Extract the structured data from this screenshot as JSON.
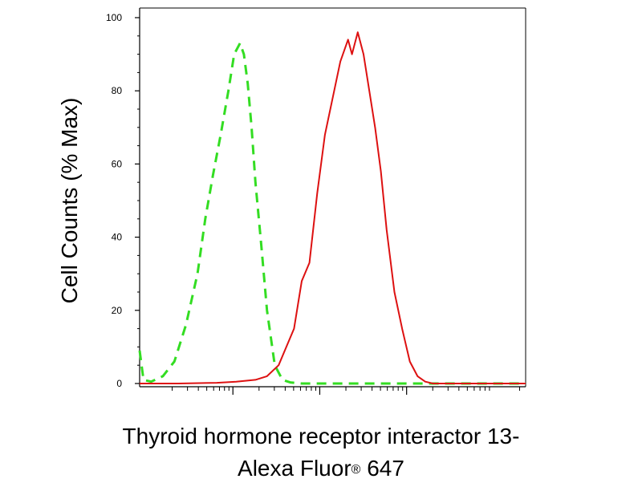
{
  "chart_data": {
    "type": "line",
    "title": "",
    "ylabel": "Cell Counts (% Max)",
    "xlabel_line1": "Thyroid hormone receptor interactor 13-",
    "xlabel_line2_main": "Alexa Fluor",
    "xlabel_line2_mark": "®",
    "xlabel_line2_end": " 647",
    "ylim": [
      0,
      100
    ],
    "yticks": [
      0,
      20,
      40,
      60,
      80,
      100
    ],
    "ytick_labels": [
      "0",
      "20",
      "40",
      "60",
      "80",
      "100"
    ],
    "xlim": [
      0,
      1
    ],
    "x_scale": "log",
    "grid": false,
    "legend": "none",
    "series": [
      {
        "style": "dashed",
        "color": "#33dd22",
        "x": [
          0.0,
          0.01,
          0.03,
          0.06,
          0.09,
          0.12,
          0.15,
          0.17,
          0.19,
          0.21,
          0.23,
          0.245,
          0.26,
          0.27,
          0.28,
          0.29,
          0.3,
          0.315,
          0.33,
          0.35,
          0.37,
          0.39,
          0.42,
          0.45,
          0.5,
          0.6,
          0.7,
          0.8,
          0.9,
          1.0
        ],
        "values": [
          9,
          1,
          0.5,
          2,
          6,
          16,
          30,
          45,
          57,
          68,
          80,
          90,
          93,
          90,
          82,
          70,
          55,
          38,
          20,
          5,
          1,
          0.3,
          0,
          0,
          0,
          0,
          0,
          0,
          0,
          0
        ]
      },
      {
        "style": "solid",
        "color": "#dd1111",
        "x": [
          0.0,
          0.1,
          0.2,
          0.25,
          0.3,
          0.33,
          0.36,
          0.38,
          0.4,
          0.42,
          0.44,
          0.46,
          0.48,
          0.5,
          0.52,
          0.54,
          0.55,
          0.565,
          0.58,
          0.595,
          0.61,
          0.625,
          0.64,
          0.66,
          0.68,
          0.7,
          0.72,
          0.74,
          0.76,
          0.78,
          0.8,
          0.9,
          1.0
        ],
        "values": [
          0,
          0,
          0.2,
          0.5,
          1,
          2,
          5,
          10,
          15,
          28,
          33,
          52,
          68,
          78,
          88,
          94,
          90,
          96,
          90,
          80,
          70,
          58,
          42,
          25,
          15,
          6,
          2,
          0.5,
          0,
          0,
          0,
          0,
          0
        ]
      }
    ]
  }
}
